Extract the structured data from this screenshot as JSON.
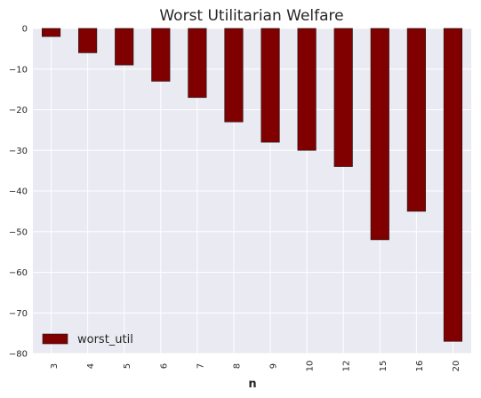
{
  "chart_data": {
    "type": "bar",
    "title": "Worst Utilitarian Welfare",
    "xlabel": "n",
    "ylabel": "",
    "categories": [
      "3",
      "4",
      "5",
      "6",
      "7",
      "8",
      "9",
      "10",
      "12",
      "15",
      "16",
      "20"
    ],
    "series": [
      {
        "name": "worst_util",
        "values": [
          -2,
          -6,
          -9,
          -13,
          -17,
          -23,
          -28,
          -30,
          -34,
          -52,
          -45,
          -77
        ],
        "color": "#800000"
      }
    ],
    "ylim": [
      -80,
      0
    ],
    "yticks": [
      0,
      -10,
      -20,
      -30,
      -40,
      -50,
      -60,
      -70,
      -80
    ],
    "ytick_labels": [
      "0",
      "−10",
      "−20",
      "−30",
      "−40",
      "−50",
      "−60",
      "−70",
      "−80"
    ],
    "grid": true,
    "legend_position": "lower-left",
    "background_color": "#eaeaf2",
    "grid_color": "#ffffff"
  }
}
